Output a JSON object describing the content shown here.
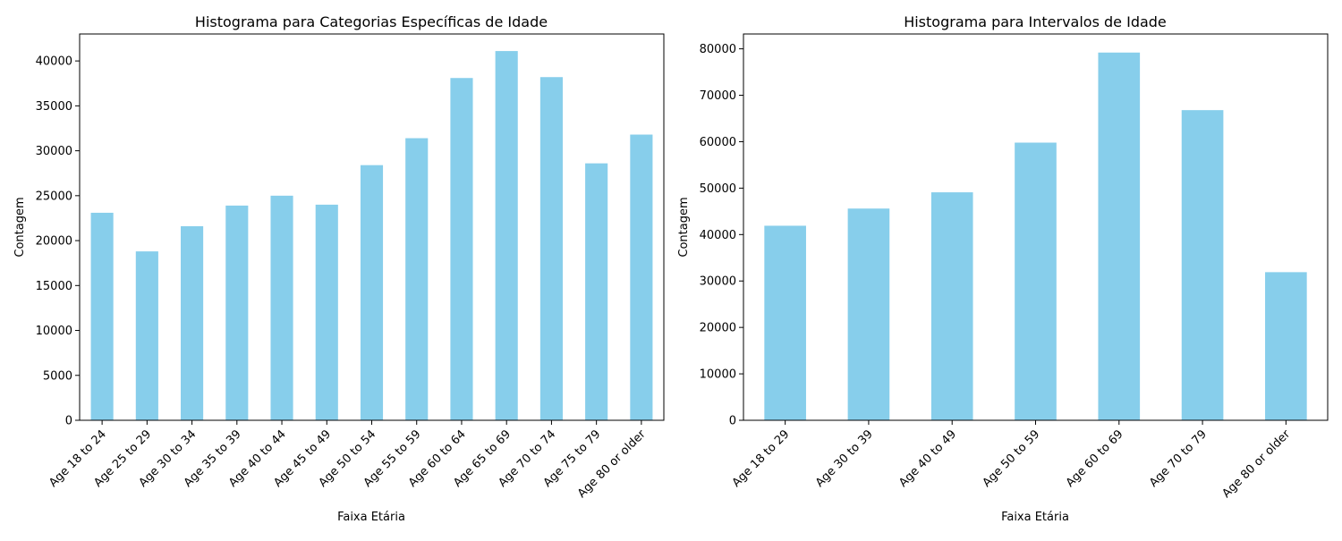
{
  "chart_data": [
    {
      "type": "bar",
      "title": "Histograma para Categorias Específicas de Idade",
      "xlabel": "Faixa Etária",
      "ylabel": "Contagem",
      "categories": [
        "Age 18 to 24",
        "Age 25 to 29",
        "Age 30 to 34",
        "Age 35 to 39",
        "Age 40 to 44",
        "Age 45 to 49",
        "Age 50 to 54",
        "Age 55 to 59",
        "Age 60 to 64",
        "Age 65 to 69",
        "Age 70 to 74",
        "Age 75 to 79",
        "Age 80 or older"
      ],
      "values": [
        23100,
        18800,
        21600,
        23900,
        25000,
        24000,
        28400,
        31400,
        38100,
        41100,
        38200,
        28600,
        31800
      ],
      "ylim": [
        0,
        43000
      ],
      "yticks": [
        0,
        5000,
        10000,
        15000,
        20000,
        25000,
        30000,
        35000,
        40000
      ],
      "grid": false,
      "bar_color": "#87CEEB"
    },
    {
      "type": "bar",
      "title": "Histograma para Intervalos de Idade",
      "xlabel": "Faixa Etária",
      "ylabel": "Contagem",
      "categories": [
        "Age 18 to 29",
        "Age 30 to 39",
        "Age 40 to 49",
        "Age 50 to 59",
        "Age 60 to 69",
        "Age 70 to 79",
        "Age 80 or older"
      ],
      "values": [
        41900,
        45600,
        49100,
        59800,
        79200,
        66800,
        31900
      ],
      "ylim": [
        0,
        83200
      ],
      "yticks": [
        0,
        10000,
        20000,
        30000,
        40000,
        50000,
        60000,
        70000,
        80000
      ],
      "grid": false,
      "bar_color": "#87CEEB"
    }
  ]
}
